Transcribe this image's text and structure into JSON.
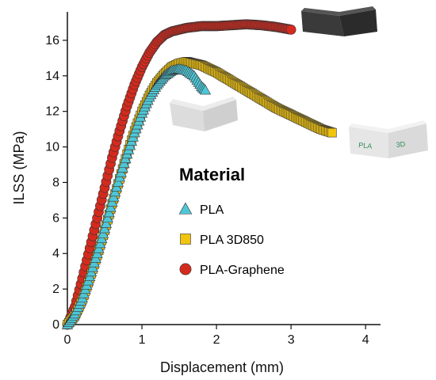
{
  "chart_data": {
    "type": "scatter",
    "xlabel": "Displacement (mm)",
    "ylabel": "ILSS (MPa)",
    "xlim": [
      0,
      4.2
    ],
    "ylim": [
      0,
      17.6
    ],
    "xticks": [
      "0",
      "1",
      "2",
      "3",
      "4"
    ],
    "yticks": [
      "0",
      "2",
      "4",
      "6",
      "8",
      "10",
      "12",
      "14",
      "16"
    ],
    "grid": false,
    "legend": {
      "title": "Material",
      "placement": "center-right"
    },
    "series": [
      {
        "name": "PLA",
        "marker": "triangle",
        "color": "#4fc6d6",
        "x": [
          0,
          0.1,
          0.2,
          0.3,
          0.4,
          0.5,
          0.6,
          0.7,
          0.8,
          0.9,
          1.0,
          1.1,
          1.2,
          1.3,
          1.4,
          1.5,
          1.6,
          1.7,
          1.8,
          1.85
        ],
        "y": [
          0,
          0.6,
          1.5,
          2.7,
          4.0,
          5.4,
          6.9,
          8.3,
          9.6,
          10.8,
          11.9,
          12.8,
          13.5,
          14.0,
          14.3,
          14.4,
          14.3,
          14.0,
          13.4,
          13.2
        ]
      },
      {
        "name": "PLA 3D850",
        "marker": "square",
        "color": "#f1c40f",
        "x": [
          0,
          0.1,
          0.2,
          0.3,
          0.4,
          0.5,
          0.6,
          0.7,
          0.8,
          0.9,
          1.0,
          1.1,
          1.2,
          1.3,
          1.4,
          1.5,
          1.6,
          1.7,
          1.8,
          1.9,
          2.0,
          2.2,
          2.4,
          2.6,
          2.8,
          3.0,
          3.2,
          3.4,
          3.55
        ],
        "y": [
          0,
          0.5,
          1.4,
          2.6,
          3.9,
          5.3,
          6.8,
          8.2,
          9.6,
          10.9,
          12.0,
          12.9,
          13.6,
          14.1,
          14.5,
          14.7,
          14.8,
          14.7,
          14.6,
          14.4,
          14.2,
          13.7,
          13.2,
          12.7,
          12.2,
          11.8,
          11.4,
          11.0,
          10.8
        ]
      },
      {
        "name": "PLA-Graphene",
        "marker": "circle",
        "color": "#d42a1e",
        "x": [
          0,
          0.1,
          0.2,
          0.3,
          0.4,
          0.5,
          0.6,
          0.7,
          0.8,
          0.9,
          1.0,
          1.1,
          1.2,
          1.3,
          1.4,
          1.5,
          1.6,
          1.7,
          1.8,
          1.9,
          2.0,
          2.2,
          2.4,
          2.6,
          2.8,
          3.0
        ],
        "y": [
          0,
          1.0,
          2.6,
          4.3,
          6.0,
          7.7,
          9.4,
          10.9,
          12.3,
          13.5,
          14.5,
          15.3,
          15.9,
          16.3,
          16.5,
          16.6,
          16.7,
          16.75,
          16.8,
          16.8,
          16.8,
          16.85,
          16.9,
          16.85,
          16.75,
          16.6
        ]
      }
    ]
  },
  "colors": {
    "axis": "#111111",
    "marker_edge": "#333333"
  }
}
